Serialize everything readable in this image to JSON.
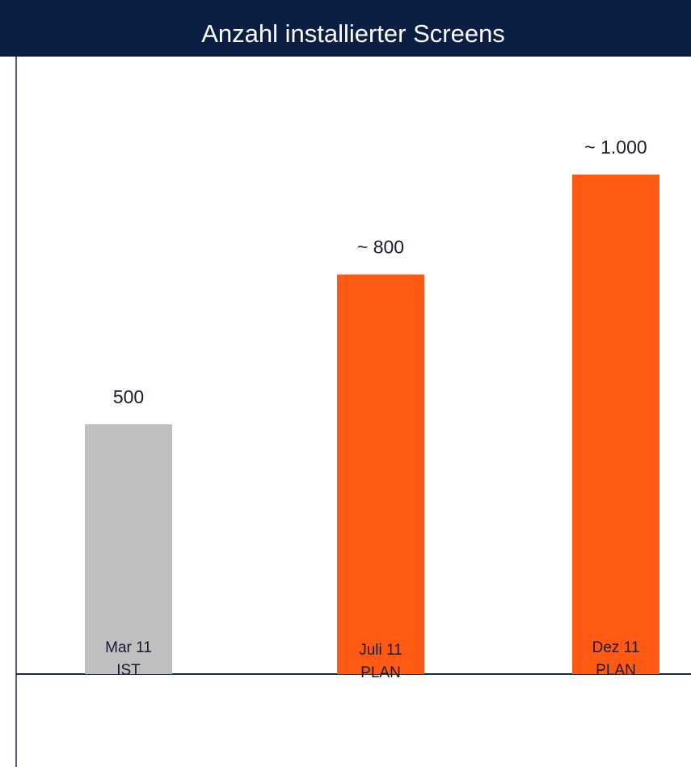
{
  "chart_data": {
    "type": "bar",
    "title": "Anzahl installierter Screens",
    "categories": [
      [
        "Mar 11",
        "IST"
      ],
      [
        "Juli 11",
        "PLAN"
      ],
      [
        "Dez 11",
        "PLAN"
      ]
    ],
    "values": [
      500,
      800,
      1000
    ],
    "value_labels": [
      "500",
      "~ 800",
      "~ 1.000"
    ],
    "colors": [
      "#bfbfbf",
      "#ff5a14",
      "#ff5a14"
    ]
  }
}
